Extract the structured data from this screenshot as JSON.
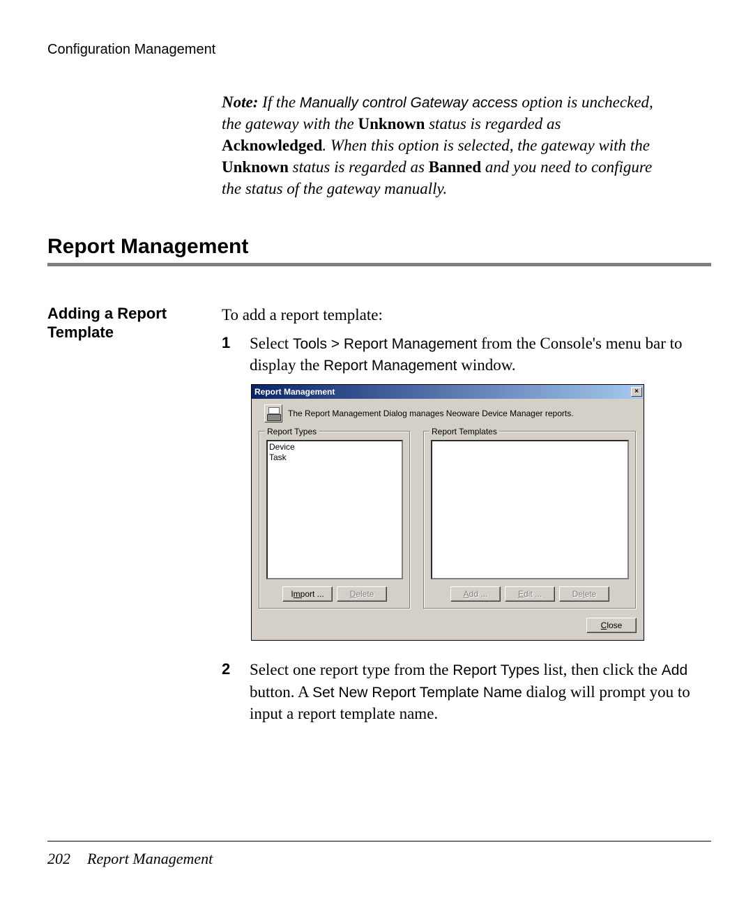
{
  "running_header": "Configuration Management",
  "note": {
    "prefix": "Note:",
    "option_name": "Manually control Gateway access",
    "text1": " If the ",
    "text2": " option is unchecked, the gateway with the ",
    "unknown1": "Unknown",
    "text3": " status is regarded as ",
    "ack": "Acknowledged",
    "text4": ". When this option is selected, the gateway with the ",
    "unknown2": "Unknown",
    "text5": " status is regarded as ",
    "banned": "Banned",
    "text6": " and you need to configure the status of the gateway manually."
  },
  "section_heading": "Report Management",
  "sidebar_heading": "Adding a Report Template",
  "intro": "To add a report template:",
  "step1": {
    "num": "1",
    "t1": "Select ",
    "menu": "Tools > Report Management",
    "t2": " from the Console's menu bar to display the ",
    "win": "Report Management",
    "t3": " window."
  },
  "dialog": {
    "title": "Report Management",
    "close_x": "×",
    "description": "The Report Management Dialog manages Neoware Device Manager reports.",
    "left_group": "Report Types",
    "right_group": "Report Templates",
    "types": [
      "Device",
      "Task"
    ],
    "import_btn": {
      "pre": "I",
      "u": "m",
      "post": "port ..."
    },
    "delete_btn_left": {
      "pre": "",
      "u": "D",
      "post": "elete"
    },
    "add_btn": {
      "pre": "",
      "u": "A",
      "post": "dd ..."
    },
    "edit_btn": {
      "pre": "",
      "u": "E",
      "post": "dit ..."
    },
    "delete_btn_right": {
      "pre": "De",
      "u": "l",
      "post": "ete"
    },
    "close_btn": {
      "pre": "",
      "u": "C",
      "post": "lose"
    }
  },
  "step2": {
    "num": "2",
    "t1": "Select one report type from the ",
    "rt": "Report Types",
    "t2": " list, then click the ",
    "add": "Add",
    "t3": " button. A ",
    "setname": "Set New Report Template Name",
    "t4": " dialog will prompt you to input a report template name."
  },
  "footer": {
    "page": "202",
    "title": "Report Management"
  },
  "colors": {
    "page_bg": "#ffffff",
    "rule_gray": "#808080",
    "dialog_face": "#d4d0c8",
    "titlebar_start": "#0a246a",
    "titlebar_end": "#a6caf0",
    "disabled_text": "#808080"
  }
}
